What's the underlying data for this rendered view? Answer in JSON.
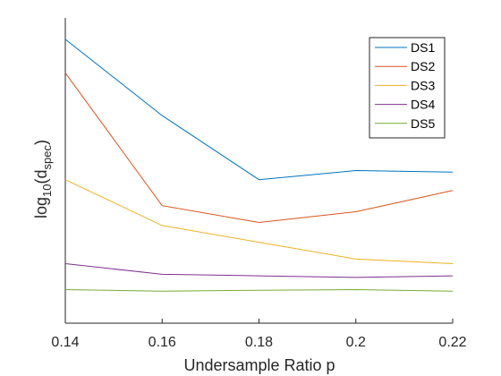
{
  "chart_data": {
    "type": "line",
    "title": "",
    "xlabel": "Undersample Ratio p",
    "ylabel": {
      "base": "log",
      "sub1": "10",
      "mid": "(d",
      "sub2": "spec",
      "end": ")"
    },
    "x": [
      0.14,
      0.16,
      0.18,
      0.2,
      0.22
    ],
    "x_tick_labels": [
      "0.14",
      "0.16",
      "0.18",
      "0.2",
      "0.22"
    ],
    "xlim": [
      0.14,
      0.22
    ],
    "ylim": [
      0,
      1
    ],
    "y_ticks_shown": false,
    "grid": false,
    "legend_position": "top-right",
    "series": [
      {
        "name": "DS1",
        "color": "#0072BD",
        "values": [
          0.93,
          0.68,
          0.47,
          0.5,
          0.495
        ]
      },
      {
        "name": "DS2",
        "color": "#D95319",
        "values": [
          0.82,
          0.385,
          0.33,
          0.365,
          0.435
        ]
      },
      {
        "name": "DS3",
        "color": "#EDB120",
        "values": [
          0.47,
          0.32,
          0.265,
          0.21,
          0.195
        ]
      },
      {
        "name": "DS4",
        "color": "#7E2F8E",
        "values": [
          0.195,
          0.16,
          0.155,
          0.15,
          0.155
        ]
      },
      {
        "name": "DS5",
        "color": "#77AC30",
        "values": [
          0.11,
          0.105,
          0.108,
          0.11,
          0.105
        ]
      }
    ]
  }
}
